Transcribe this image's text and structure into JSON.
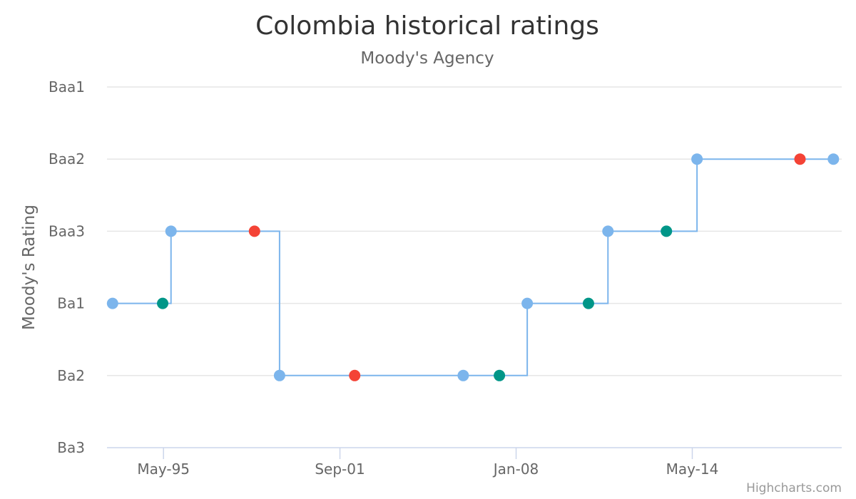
{
  "chart_data": {
    "type": "line",
    "step": true,
    "title": "Colombia historical ratings",
    "subtitle": "Moody's Agency",
    "ylabel": "Moody's Rating",
    "xlabel": "",
    "y_categories": [
      "Ba3",
      "Ba2",
      "Ba1",
      "Baa3",
      "Baa2",
      "Baa1"
    ],
    "x_ticks": [
      {
        "label": "May-95",
        "year": 1995.33
      },
      {
        "label": "Sep-01",
        "year": 2001.67
      },
      {
        "label": "Jan-08",
        "year": 2008.0
      },
      {
        "label": "May-14",
        "year": 2014.33
      }
    ],
    "xlim": [
      1993.3,
      2019.7
    ],
    "points": [
      {
        "x": 1993.5,
        "rating": "Ba1",
        "color": "#7cb5ec"
      },
      {
        "x": 1995.3,
        "rating": "Ba1",
        "color": "#009688"
      },
      {
        "x": 1995.6,
        "rating": "Baa3",
        "color": "#7cb5ec"
      },
      {
        "x": 1998.6,
        "rating": "Baa3",
        "color": "#f44336"
      },
      {
        "x": 1999.5,
        "rating": "Ba2",
        "color": "#7cb5ec"
      },
      {
        "x": 2002.2,
        "rating": "Ba2",
        "color": "#f44336"
      },
      {
        "x": 2006.1,
        "rating": "Ba2",
        "color": "#7cb5ec"
      },
      {
        "x": 2007.4,
        "rating": "Ba2",
        "color": "#009688"
      },
      {
        "x": 2008.4,
        "rating": "Ba1",
        "color": "#7cb5ec"
      },
      {
        "x": 2010.6,
        "rating": "Ba1",
        "color": "#009688"
      },
      {
        "x": 2011.3,
        "rating": "Baa3",
        "color": "#7cb5ec"
      },
      {
        "x": 2013.4,
        "rating": "Baa3",
        "color": "#009688"
      },
      {
        "x": 2014.5,
        "rating": "Baa2",
        "color": "#7cb5ec"
      },
      {
        "x": 2018.2,
        "rating": "Baa2",
        "color": "#f44336"
      },
      {
        "x": 2019.4,
        "rating": "Baa2",
        "color": "#7cb5ec"
      }
    ],
    "grid": true,
    "line_color": "#7cb5ec"
  },
  "credits": "Highcharts.com"
}
